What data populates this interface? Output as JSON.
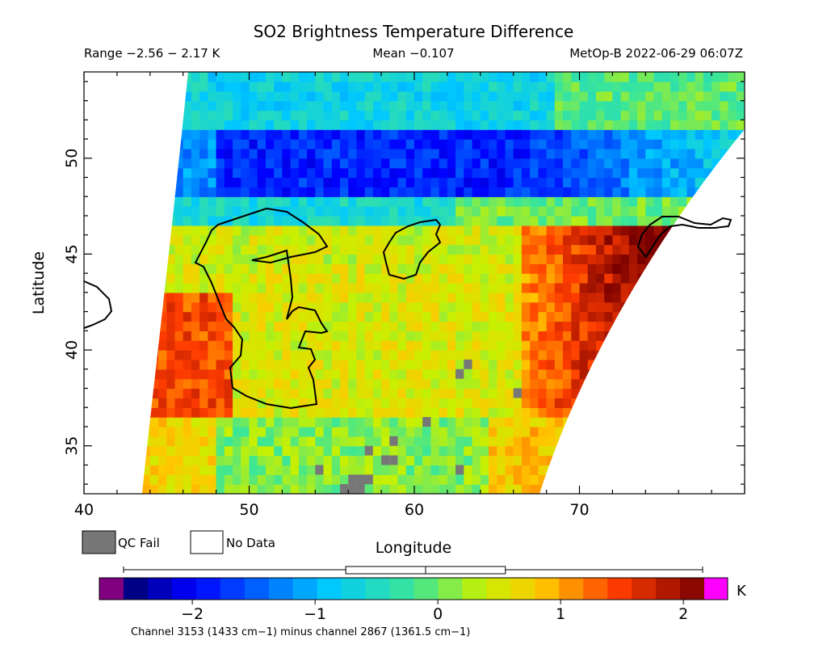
{
  "chart_data": {
    "type": "heatmap",
    "title": "SO2 Brightness Temperature Difference",
    "subtitle_left": "Range −2.56 − 2.17 K",
    "subtitle_center": "Mean −0.107",
    "subtitle_right": "MetOp-B 2022-06-29 06:07Z",
    "xlabel": "Longitude",
    "ylabel": "Latitude",
    "xlim": [
      40,
      80
    ],
    "ylim": [
      32.5,
      54.5
    ],
    "x_ticks": [
      40,
      50,
      60,
      70
    ],
    "y_ticks": [
      35,
      40,
      45,
      50
    ],
    "grid": false,
    "colorbar": {
      "min": -2.56,
      "max": 2.17,
      "unit": "K",
      "ticks": [
        -2,
        -1,
        0,
        1,
        2
      ],
      "tick_labels": [
        "−2",
        "−1",
        "0",
        "1",
        "2"
      ],
      "underflow_color": "#800080",
      "overflow_color": "#ff00ff",
      "boxplot": {
        "whisker_low": -2.56,
        "q1": -0.75,
        "median": -0.1,
        "q3": 0.55,
        "whisker_high": 2.17
      },
      "caption": "Channel 3153 (1433 cm−1) minus channel 2867 (1361.5 cm−1)"
    },
    "legend": [
      {
        "label": "QC Fail",
        "color": "#777777"
      },
      {
        "label": "No Data",
        "color": "#ffffff"
      }
    ],
    "field_regions": [
      {
        "region": "north (lat 52–54)",
        "value": -0.8
      },
      {
        "region": "band lat 48–50",
        "value": -2.0
      },
      {
        "region": "central (lat 40–45)",
        "value": 0.6
      },
      {
        "region": "east (lon 68–73, lat 38–43)",
        "value": 1.9
      },
      {
        "region": "west edge (lon 44–48, lat 37–42)",
        "value": 1.5
      },
      {
        "region": "south (lat 33–36)",
        "value": 0.0
      }
    ]
  }
}
